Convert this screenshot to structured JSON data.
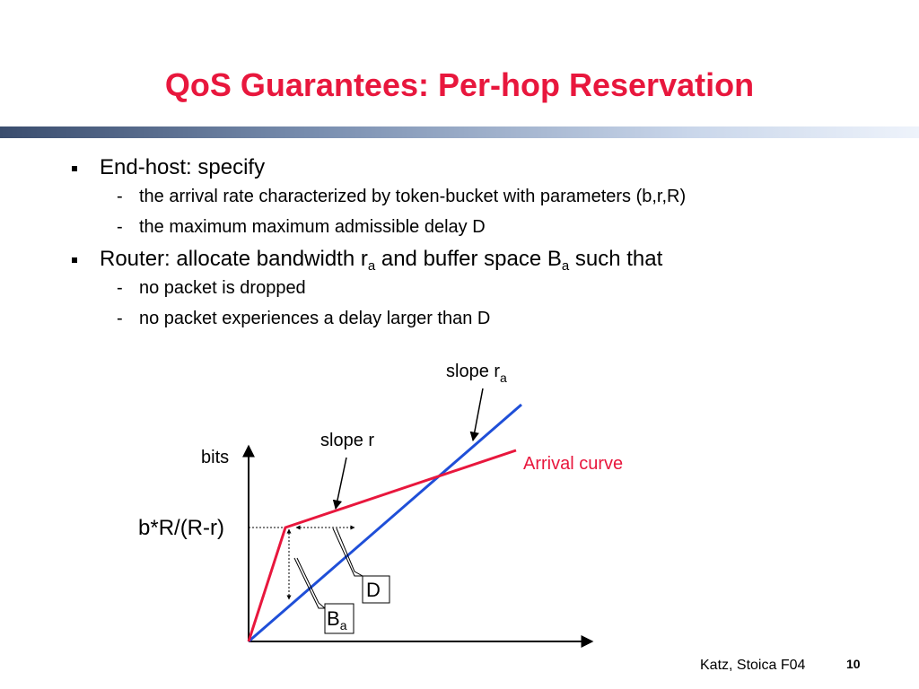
{
  "slide": {
    "title": "QoS Guarantees: Per-hop Reservation",
    "bullets": [
      {
        "text": "End-host: specify",
        "subs": [
          "the arrival rate characterized by token-bucket with parameters (b,r,R)",
          "the maximum maximum admissible delay D"
        ]
      },
      {
        "text_parts": [
          "Router: allocate bandwidth r",
          "a",
          " and buffer space B",
          "a",
          " such that"
        ],
        "subs": [
          "no packet is dropped",
          "no packet experiences a delay larger than D"
        ]
      }
    ],
    "sub_marker": "-"
  },
  "diagram": {
    "y_axis_label": "bits",
    "y_tick_label": "b*R/(R-r)",
    "label_slope_r": "slope r",
    "label_slope_ra": "slope r",
    "label_slope_ra_sub": "a",
    "label_arrival": "Arrival curve",
    "label_D": "D",
    "label_Ba": "B",
    "label_Ba_sub": "a",
    "colors": {
      "arrival": "#e8173d",
      "service": "#1f4fd8",
      "axis": "#000000"
    }
  },
  "footer": {
    "credit": "Katz, Stoica F04",
    "page": "10"
  }
}
